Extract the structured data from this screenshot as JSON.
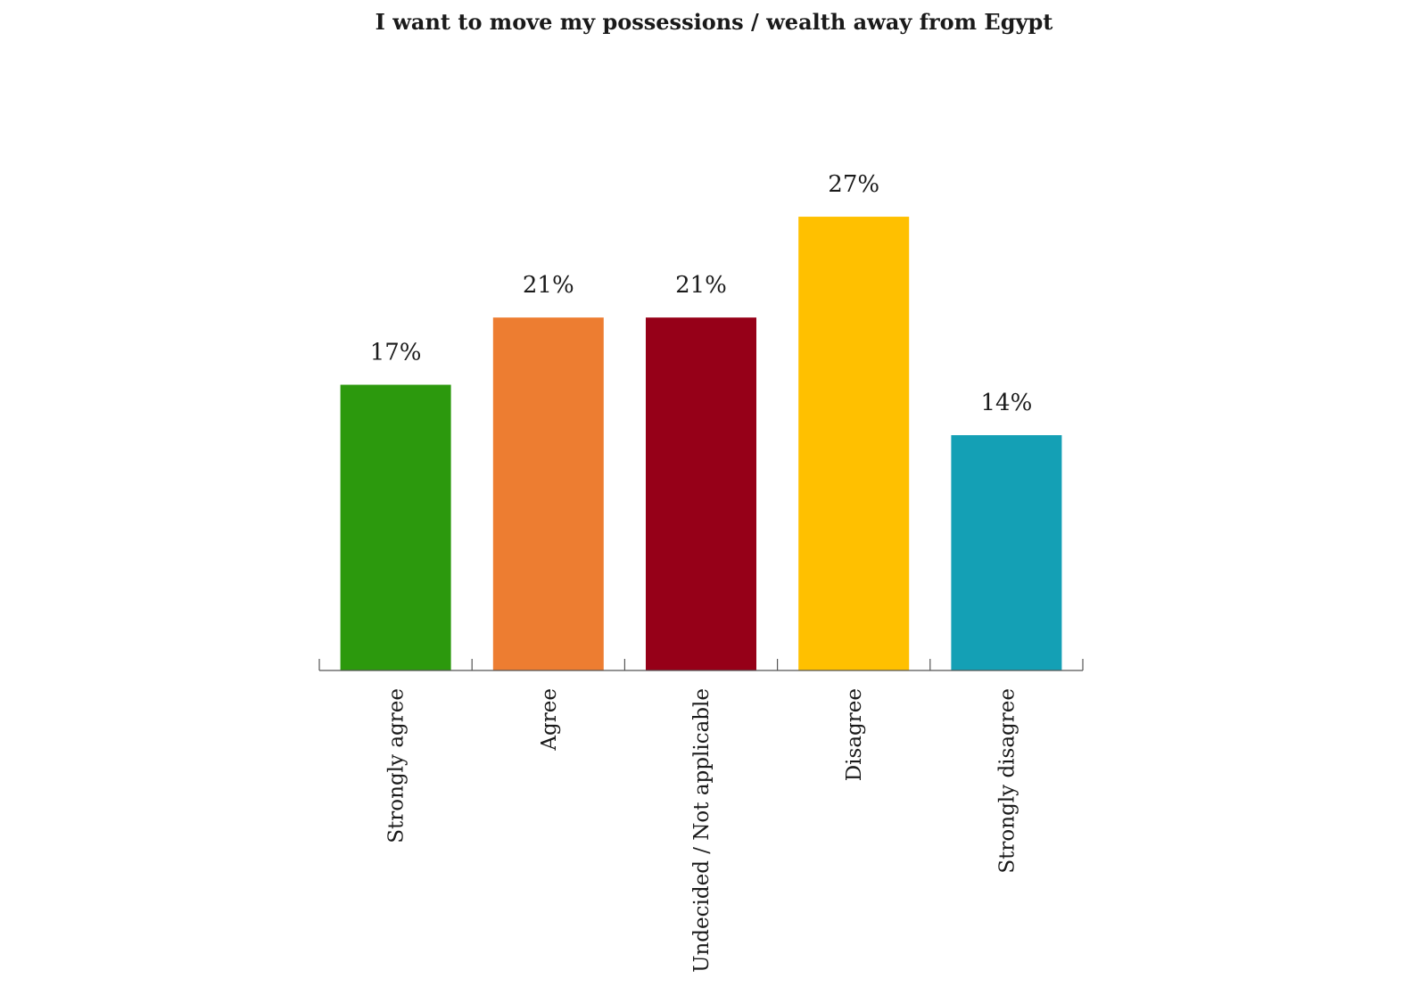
{
  "chart_data": {
    "type": "bar",
    "title": "I want to move my possessions / wealth away from Egypt",
    "categories": [
      "Strongly agree",
      "Agree",
      "Undecided / Not applicable",
      "Disagree",
      "Strongly disagree"
    ],
    "values": [
      17,
      21,
      21,
      27,
      14
    ],
    "value_labels": [
      "17%",
      "21%",
      "21%",
      "27%",
      "14%"
    ],
    "colors": [
      "#2c990d",
      "#ed7d31",
      "#960018",
      "#ffc000",
      "#14a0b5"
    ],
    "xlabel": "",
    "ylabel": "",
    "ylim": [
      0,
      30
    ],
    "grid": false
  }
}
